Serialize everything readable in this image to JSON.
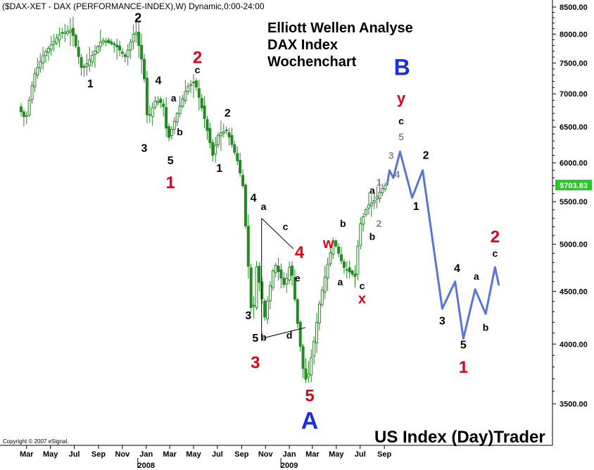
{
  "header": {
    "title_line": "($DAX-XET - DAX (PERFORMANCE-INDEX),W) Dynamic,0:00-24:00",
    "analysis_lines": [
      "Elliott Wellen Analyse",
      "DAX Index",
      "Wochenchart"
    ],
    "footer_brand": "US Index (Day)Trader",
    "copyright": "Copyright © 2007 eSignal."
  },
  "colors": {
    "candle": "#228b22",
    "projection": "#5a74d8",
    "last_price_bg": "#22cc22",
    "red": "#e0001a",
    "blue": "#1a2fe0",
    "grey": "#8a8a8a"
  },
  "chart_data": {
    "type": "candlestick",
    "y_scale": "log",
    "y_ticks": [
      "3500.00",
      "4000.00",
      "4500.00",
      "5000.00",
      "5500.00",
      "6000.00",
      "6500.00",
      "7000.00",
      "7500.00",
      "8000.00",
      "8500.00"
    ],
    "ylim": [
      3280,
      8600
    ],
    "x_ticks": [
      "Mar",
      "May",
      "Jul",
      "Sep",
      "Nov",
      "Jan",
      "Mar",
      "May",
      "Jul",
      "Sep",
      "Nov",
      "Jan",
      "Mar",
      "May",
      "Jul",
      "Sep"
    ],
    "x_year_labels": [
      "2008",
      "2009"
    ],
    "last_price": "5703.83",
    "price_path": [
      [
        "2007-03-01",
        6800
      ],
      [
        "2007-03-20",
        6600
      ],
      [
        "2007-04-10",
        7300
      ],
      [
        "2007-05-05",
        7650
      ],
      [
        "2007-06-15",
        8000
      ],
      [
        "2007-07-15",
        8080
      ],
      [
        "2007-08-10",
        7400
      ],
      [
        "2007-08-25",
        7500
      ],
      [
        "2007-10-01",
        7900
      ],
      [
        "2007-11-05",
        7800
      ],
      [
        "2007-11-30",
        7600
      ],
      [
        "2007-12-25",
        8100
      ],
      [
        "2008-01-15",
        7400
      ],
      [
        "2008-01-25",
        6600
      ],
      [
        "2008-02-15",
        6900
      ],
      [
        "2008-03-05",
        6850
      ],
      [
        "2008-03-17",
        6300
      ],
      [
        "2008-04-10",
        6700
      ],
      [
        "2008-05-05",
        7100
      ],
      [
        "2008-05-25",
        7200
      ],
      [
        "2008-06-20",
        6600
      ],
      [
        "2008-07-10",
        6100
      ],
      [
        "2008-07-25",
        6400
      ],
      [
        "2008-08-15",
        6450
      ],
      [
        "2008-09-10",
        6050
      ],
      [
        "2008-09-25",
        5700
      ],
      [
        "2008-10-05",
        5000
      ],
      [
        "2008-10-20",
        4100
      ],
      [
        "2008-10-28",
        4800
      ],
      [
        "2008-11-10",
        4500
      ],
      [
        "2008-11-20",
        4250
      ],
      [
        "2008-12-15",
        4800
      ],
      [
        "2009-01-10",
        4550
      ],
      [
        "2009-01-25",
        4800
      ],
      [
        "2009-02-10",
        4250
      ],
      [
        "2009-02-25",
        3800
      ],
      [
        "2009-03-08",
        3660
      ],
      [
        "2009-03-25",
        4000
      ],
      [
        "2009-04-10",
        4400
      ],
      [
        "2009-05-01",
        4800
      ],
      [
        "2009-05-15",
        5050
      ],
      [
        "2009-06-10",
        4750
      ],
      [
        "2009-07-10",
        4650
      ],
      [
        "2009-07-20",
        5200
      ],
      [
        "2009-08-10",
        5450
      ],
      [
        "2009-08-25",
        5500
      ],
      [
        "2009-09-15",
        5650
      ],
      [
        "2009-09-22",
        5703.83
      ]
    ],
    "projection": [
      [
        "2009-09-22",
        5703.83
      ],
      [
        "2009-09-28",
        5900
      ],
      [
        "2009-10-08",
        5800
      ],
      [
        "2009-10-25",
        6150
      ],
      [
        "2009-11-25",
        5550
      ],
      [
        "2009-12-22",
        5900
      ],
      [
        "2010-02-10",
        4330
      ],
      [
        "2010-03-15",
        4600
      ],
      [
        "2010-04-05",
        4050
      ],
      [
        "2010-05-05",
        4520
      ],
      [
        "2010-06-01",
        4280
      ],
      [
        "2010-06-25",
        4750
      ],
      [
        "2010-07-05",
        4560
      ]
    ],
    "triangle": [
      [
        "2008-11-05",
        5300
      ],
      [
        "2009-01-25",
        4950
      ],
      [
        "2008-11-05",
        4050
      ],
      [
        "2009-02-25",
        4150
      ]
    ],
    "wave_labels": [
      {
        "text": "2",
        "date": "2007-12-25",
        "price": 8220,
        "color": "black",
        "size": 18
      },
      {
        "text": "1",
        "date": "2007-08-25",
        "price": 7100,
        "color": "black",
        "size": 16
      },
      {
        "text": "4",
        "date": "2008-02-15",
        "price": 7150,
        "color": "black",
        "size": 16
      },
      {
        "text": "a",
        "date": "2008-03-25",
        "price": 6880,
        "color": "black",
        "size": 14
      },
      {
        "text": "3",
        "date": "2008-01-10",
        "price": 6150,
        "color": "black",
        "size": 16
      },
      {
        "text": "b",
        "date": "2008-04-10",
        "price": 6380,
        "color": "black",
        "size": 14
      },
      {
        "text": "5",
        "date": "2008-03-17",
        "price": 5980,
        "color": "black",
        "size": 16
      },
      {
        "text": "1",
        "date": "2008-03-17",
        "price": 5670,
        "color": "red",
        "size": 24
      },
      {
        "text": "2",
        "date": "2008-05-25",
        "price": 7500,
        "color": "red",
        "size": 24
      },
      {
        "text": "c",
        "date": "2008-05-25",
        "price": 7330,
        "color": "black",
        "size": 14
      },
      {
        "text": "2",
        "date": "2008-08-10",
        "price": 6650,
        "color": "black",
        "size": 16
      },
      {
        "text": "1",
        "date": "2008-07-20",
        "price": 5880,
        "color": "black",
        "size": 16
      },
      {
        "text": "4",
        "date": "2008-10-15",
        "price": 5500,
        "color": "black",
        "size": 16
      },
      {
        "text": "a",
        "date": "2008-11-10",
        "price": 5400,
        "color": "black",
        "size": 14
      },
      {
        "text": "c",
        "date": "2009-01-05",
        "price": 5160,
        "color": "black",
        "size": 14
      },
      {
        "text": "4",
        "date": "2009-02-10",
        "price": 4850,
        "color": "red",
        "size": 24
      },
      {
        "text": "e",
        "date": "2009-02-05",
        "price": 4600,
        "color": "black",
        "size": 14
      },
      {
        "text": "3",
        "date": "2008-10-02",
        "price": 4230,
        "color": "black",
        "size": 16
      },
      {
        "text": "5",
        "date": "2008-10-20",
        "price": 4020,
        "color": "black",
        "size": 16
      },
      {
        "text": "b",
        "date": "2008-11-10",
        "price": 4030,
        "color": "black",
        "size": 14
      },
      {
        "text": "d",
        "date": "2009-01-15",
        "price": 4050,
        "color": "black",
        "size": 14
      },
      {
        "text": "3",
        "date": "2008-10-20",
        "price": 3790,
        "color": "red",
        "size": 24
      },
      {
        "text": "5",
        "date": "2009-03-08",
        "price": 3520,
        "color": "red",
        "size": 24
      },
      {
        "text": "A",
        "date": "2009-03-08",
        "price": 3310,
        "color": "blue",
        "size": 34
      },
      {
        "text": "w",
        "date": "2009-04-25",
        "price": 4960,
        "color": "red",
        "size": 20
      },
      {
        "text": "b",
        "date": "2009-06-01",
        "price": 5200,
        "color": "black",
        "size": 14
      },
      {
        "text": "a",
        "date": "2009-05-25",
        "price": 4560,
        "color": "black",
        "size": 14
      },
      {
        "text": "b",
        "date": "2009-08-15",
        "price": 5050,
        "color": "black",
        "size": 14
      },
      {
        "text": "a",
        "date": "2009-08-15",
        "price": 5600,
        "color": "black",
        "size": 14
      },
      {
        "text": "c",
        "date": "2009-07-20",
        "price": 4520,
        "color": "black",
        "size": 14
      },
      {
        "text": "x",
        "date": "2009-07-20",
        "price": 4380,
        "color": "red",
        "size": 20
      },
      {
        "text": "1",
        "date": "2009-09-01",
        "price": 5700,
        "color": "grey",
        "size": 14
      },
      {
        "text": "2",
        "date": "2009-09-01",
        "price": 5200,
        "color": "grey",
        "size": 14
      },
      {
        "text": "3",
        "date": "2009-10-02",
        "price": 6050,
        "color": "grey",
        "size": 14
      },
      {
        "text": "4",
        "date": "2009-10-18",
        "price": 5800,
        "color": "grey",
        "size": 14
      },
      {
        "text": "5",
        "date": "2009-10-28",
        "price": 6310,
        "color": "grey",
        "size": 14
      },
      {
        "text": "c",
        "date": "2009-10-28",
        "price": 6540,
        "color": "black",
        "size": 14
      },
      {
        "text": "y",
        "date": "2009-10-28",
        "price": 6850,
        "color": "red",
        "size": 22
      },
      {
        "text": "B",
        "date": "2009-10-30",
        "price": 7300,
        "color": "blue",
        "size": 32
      },
      {
        "text": "2",
        "date": "2009-12-30",
        "price": 6050,
        "color": "black",
        "size": 16
      },
      {
        "text": "1",
        "date": "2009-12-05",
        "price": 5400,
        "color": "black",
        "size": 16
      },
      {
        "text": "3",
        "date": "2010-02-10",
        "price": 4180,
        "color": "black",
        "size": 16
      },
      {
        "text": "4",
        "date": "2010-03-20",
        "price": 4700,
        "color": "black",
        "size": 16
      },
      {
        "text": "5",
        "date": "2010-04-05",
        "price": 3960,
        "color": "black",
        "size": 16
      },
      {
        "text": "1",
        "date": "2010-04-05",
        "price": 3750,
        "color": "red",
        "size": 24
      },
      {
        "text": "a",
        "date": "2010-05-08",
        "price": 4620,
        "color": "black",
        "size": 14
      },
      {
        "text": "b",
        "date": "2010-06-01",
        "price": 4120,
        "color": "black",
        "size": 14
      },
      {
        "text": "c",
        "date": "2010-06-25",
        "price": 4860,
        "color": "black",
        "size": 14
      },
      {
        "text": "2",
        "date": "2010-06-25",
        "price": 5020,
        "color": "red",
        "size": 24
      }
    ]
  }
}
